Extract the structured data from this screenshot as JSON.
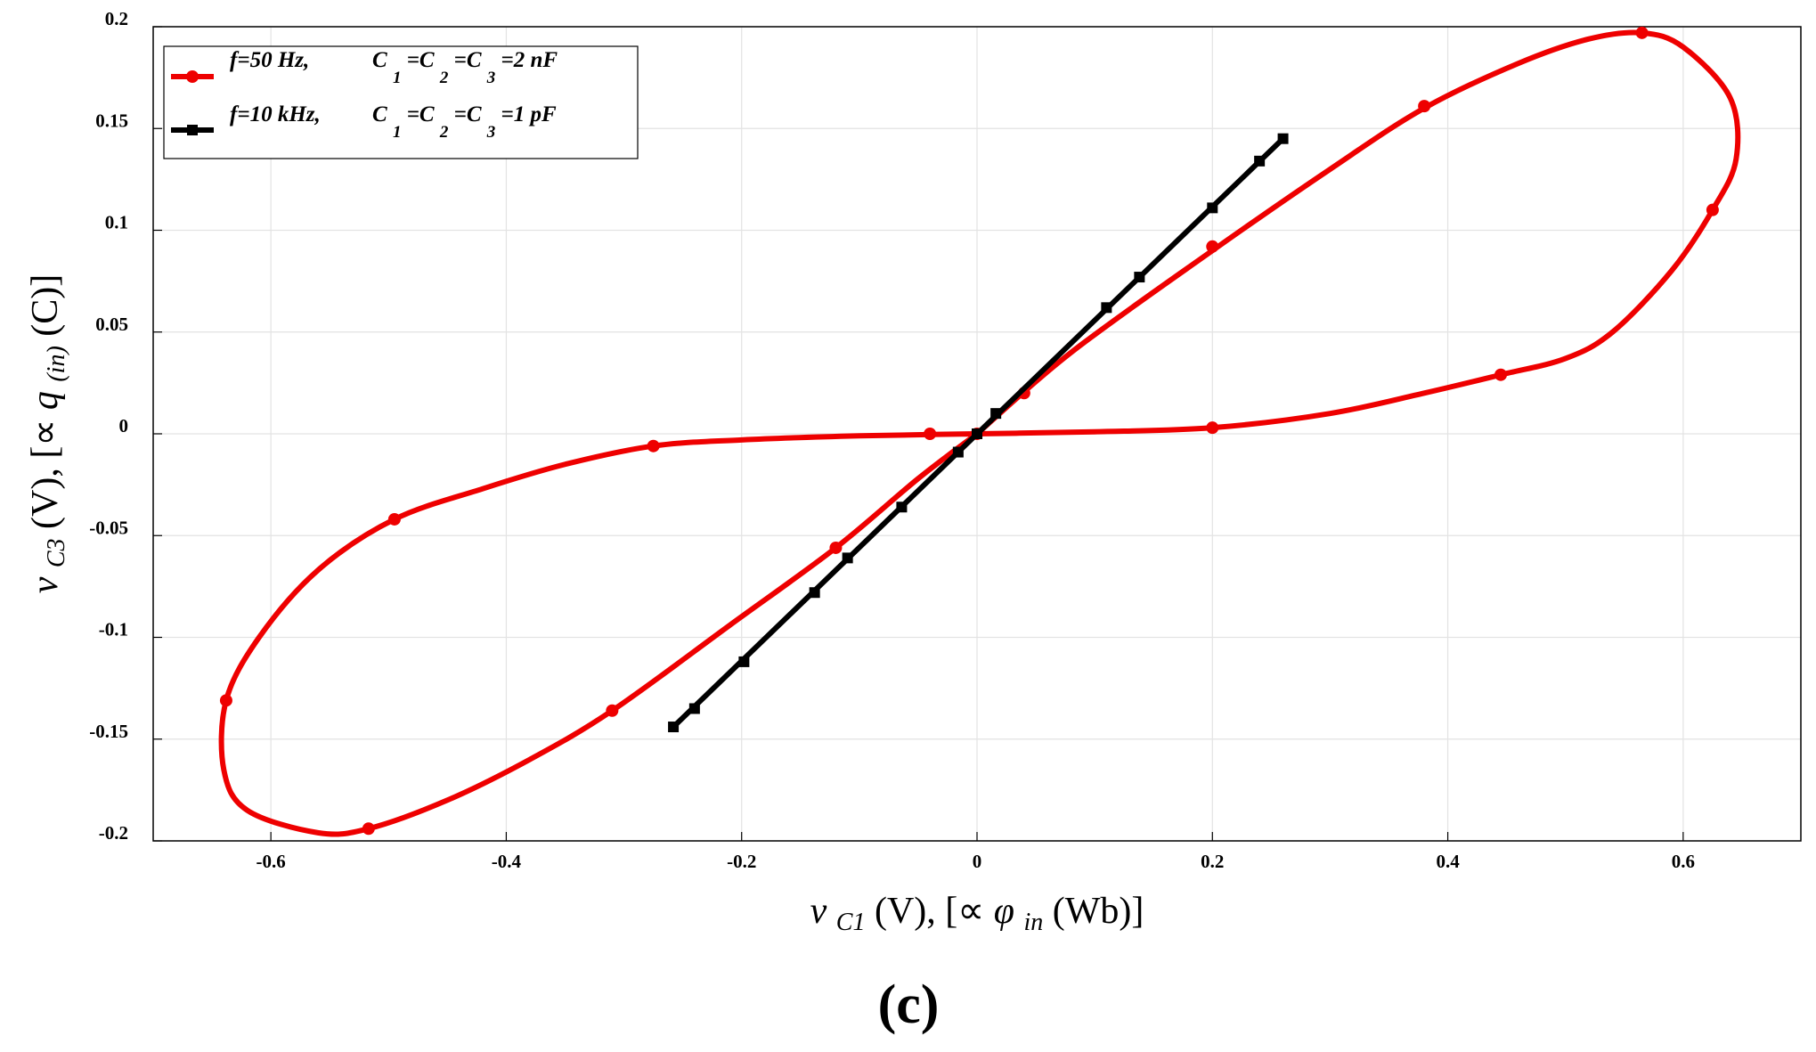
{
  "panel_label": "(c)",
  "chart_data": {
    "type": "line",
    "xlabel": {
      "prefix_var": "v",
      "prefix_sub": "C1",
      "mid": "(V), [∝ ",
      "flux_var": "φ",
      "flux_sub": "in",
      "suffix": "(Wb)]"
    },
    "ylabel": {
      "prefix_var": "v",
      "prefix_sub": "C3",
      "mid": "(V), [∝ ",
      "charge_var": "q",
      "charge_sub": "(in)",
      "suffix": "(C)]"
    },
    "xlim": [
      -0.7,
      0.7
    ],
    "ylim": [
      -0.2,
      0.2
    ],
    "x_ticks": [
      -0.6,
      -0.4,
      -0.2,
      0,
      0.2,
      0.4,
      0.6
    ],
    "x_tick_labels": [
      "-0.6",
      "-0.4",
      "-0.2",
      "0",
      "0.2",
      "0.4",
      "0.6"
    ],
    "y_ticks": [
      0.2,
      0.15,
      0.1,
      0.05,
      0,
      -0.05,
      -0.1,
      -0.15,
      -0.2
    ],
    "y_tick_labels": [
      "0.2",
      "0.15",
      "0.1",
      "0.05",
      "0",
      "-0.05",
      "-0.1",
      "-0.15",
      "-0.2"
    ],
    "grid": true,
    "legend_position": "top-left",
    "legend": [
      {
        "label_f": "f=50 Hz,",
        "label_c": "C",
        "sub1": "1",
        "eq1": "=C",
        "sub2": "2",
        "eq2": "=C",
        "sub3": "3",
        "tail": "=2 nF"
      },
      {
        "label_f": "f=10 kHz,",
        "label_c": "C",
        "sub1": "1",
        "eq1": "=C",
        "sub2": "2",
        "eq2": "=C",
        "sub3": "3",
        "tail": "=1 pF"
      }
    ],
    "series": [
      {
        "color": "#ee0000",
        "marker": "circle",
        "curve": [
          [
            0,
            0
          ],
          [
            0.08,
            0.04
          ],
          [
            0.2,
            0.09
          ],
          [
            0.3,
            0.13
          ],
          [
            0.38,
            0.16
          ],
          [
            0.46,
            0.182
          ],
          [
            0.52,
            0.194
          ],
          [
            0.565,
            0.197
          ],
          [
            0.6,
            0.19
          ],
          [
            0.64,
            0.165
          ],
          [
            0.645,
            0.135
          ],
          [
            0.625,
            0.11
          ],
          [
            0.59,
            0.08
          ],
          [
            0.54,
            0.05
          ],
          [
            0.5,
            0.037
          ],
          [
            0.445,
            0.029
          ],
          [
            0.38,
            0.02
          ],
          [
            0.3,
            0.01
          ],
          [
            0.2,
            0.003
          ],
          [
            0.1,
            0.001
          ],
          [
            0,
            0
          ],
          [
            -0.1,
            -0.001
          ],
          [
            -0.2,
            -0.003
          ],
          [
            -0.275,
            -0.006
          ],
          [
            -0.35,
            -0.015
          ],
          [
            -0.42,
            -0.027
          ],
          [
            -0.495,
            -0.042
          ],
          [
            -0.56,
            -0.067
          ],
          [
            -0.61,
            -0.1
          ],
          [
            -0.638,
            -0.131
          ],
          [
            -0.64,
            -0.165
          ],
          [
            -0.62,
            -0.185
          ],
          [
            -0.56,
            -0.196
          ],
          [
            -0.517,
            -0.194
          ],
          [
            -0.45,
            -0.18
          ],
          [
            -0.38,
            -0.16
          ],
          [
            -0.31,
            -0.136
          ],
          [
            -0.21,
            -0.094
          ],
          [
            -0.12,
            -0.056
          ],
          [
            -0.05,
            -0.022
          ],
          [
            0,
            0
          ]
        ],
        "markers": [
          [
            0.565,
            0.197
          ],
          [
            0.38,
            0.161
          ],
          [
            0.2,
            0.092
          ],
          [
            0.04,
            0.02
          ],
          [
            0,
            0
          ],
          [
            -0.12,
            -0.056
          ],
          [
            -0.31,
            -0.136
          ],
          [
            -0.517,
            -0.194
          ],
          [
            -0.638,
            -0.131
          ],
          [
            -0.495,
            -0.042
          ],
          [
            -0.275,
            -0.006
          ],
          [
            -0.04,
            0
          ],
          [
            0.2,
            0.003
          ],
          [
            0.445,
            0.029
          ],
          [
            0.625,
            0.11
          ]
        ]
      },
      {
        "color": "#000000",
        "marker": "square",
        "curve": [
          [
            -0.258,
            -0.144
          ],
          [
            0.26,
            0.145
          ]
        ],
        "markers": [
          [
            -0.258,
            -0.144
          ],
          [
            -0.24,
            -0.135
          ],
          [
            -0.198,
            -0.112
          ],
          [
            -0.138,
            -0.078
          ],
          [
            -0.11,
            -0.061
          ],
          [
            -0.064,
            -0.036
          ],
          [
            -0.016,
            -0.009
          ],
          [
            0,
            0
          ],
          [
            0.016,
            0.01
          ],
          [
            0.11,
            0.062
          ],
          [
            0.138,
            0.077
          ],
          [
            0.2,
            0.111
          ],
          [
            0.24,
            0.134
          ],
          [
            0.26,
            0.145
          ]
        ]
      }
    ]
  }
}
